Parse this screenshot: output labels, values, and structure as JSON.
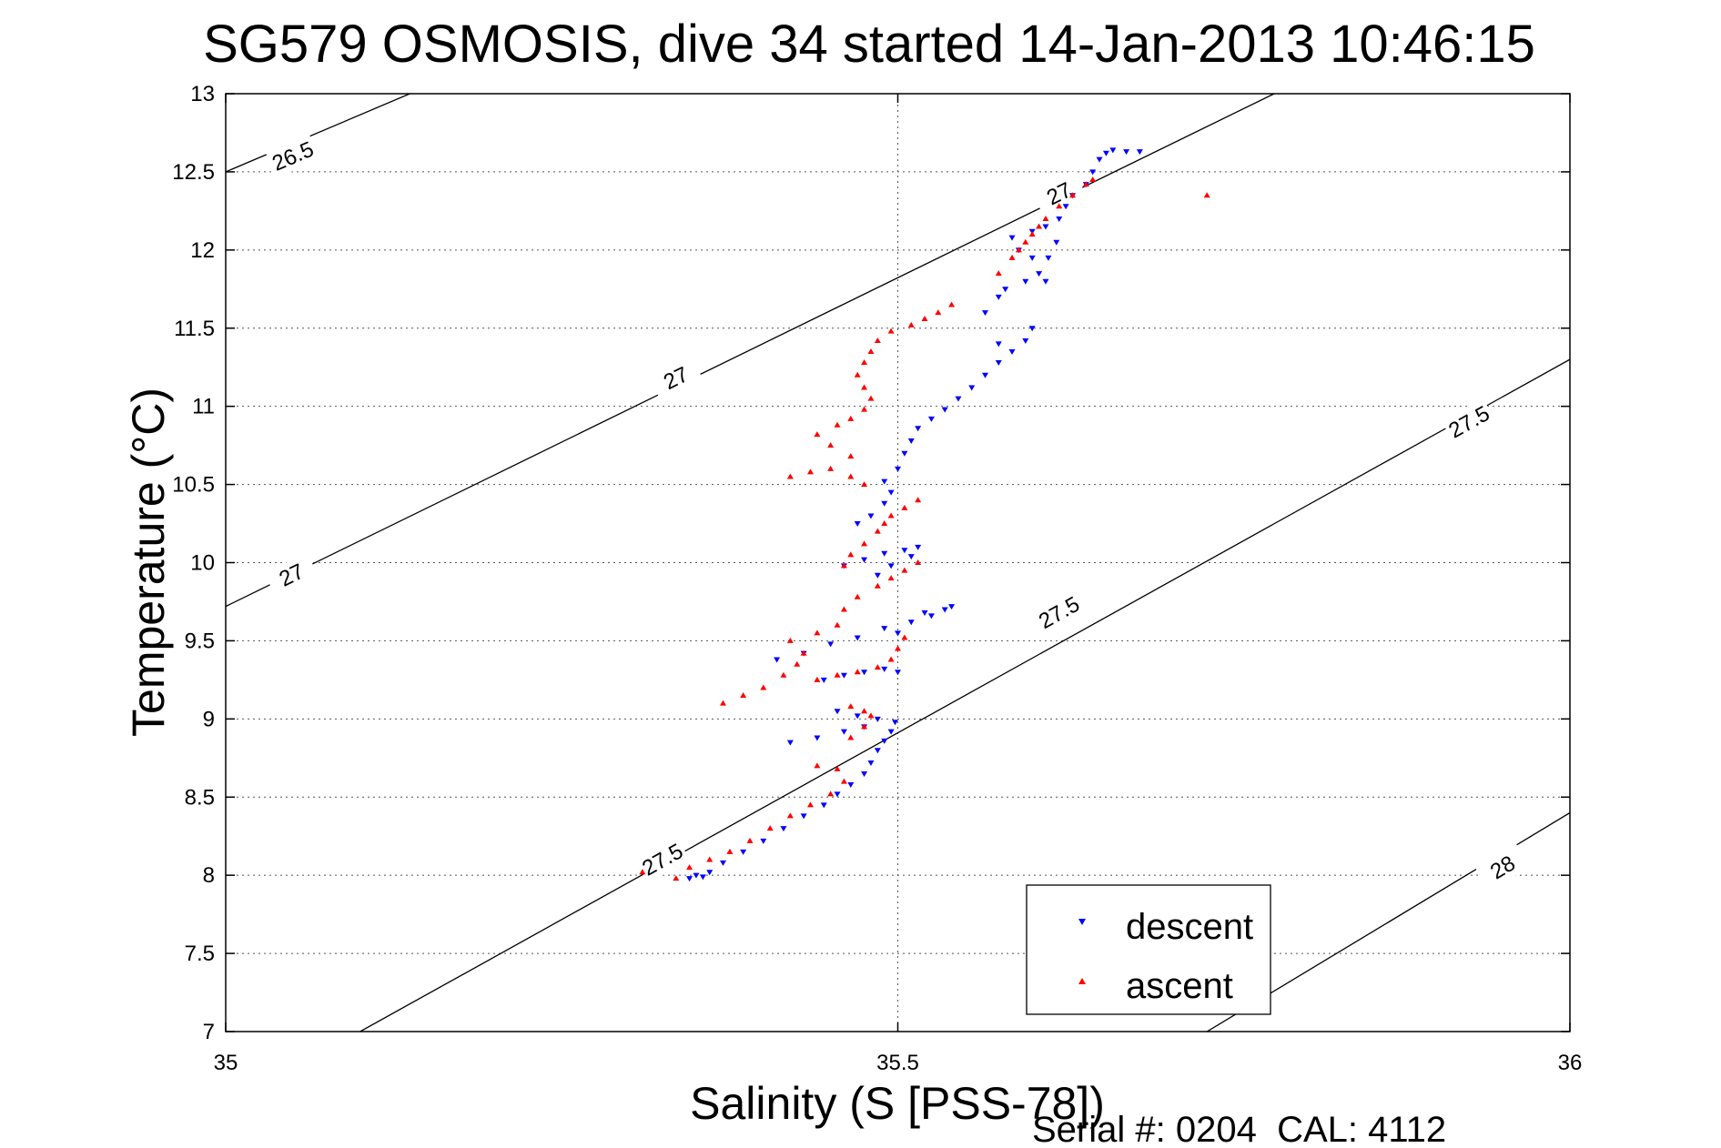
{
  "chart_data": {
    "type": "scatter",
    "title": "SG579 OSMOSIS, dive 34 started 14-Jan-2013 10:46:15",
    "xlabel": "Salinity (S [PSS-78])",
    "ylabel": "Temperature (°C)",
    "xlim": [
      35,
      36
    ],
    "ylim": [
      7,
      13
    ],
    "xticks": [
      "35",
      "35.5",
      "36"
    ],
    "yticks": [
      "7",
      "7.5",
      "8",
      "8.5",
      "9",
      "9.5",
      "10",
      "10.5",
      "11",
      "11.5",
      "12",
      "12.5",
      "13"
    ],
    "grid": true,
    "legend_position": "bottom-right",
    "footer": "Serial #: 0204  CAL: 4112",
    "density_contours": [
      {
        "value": "26.5",
        "points": [
          [
            35.0,
            12.5
          ],
          [
            35.137,
            13.0
          ]
        ],
        "label_at": [
          35.05,
          12.6
        ]
      },
      {
        "value": "27",
        "points": [
          [
            35.0,
            9.72
          ],
          [
            35.78,
            13.0
          ]
        ],
        "label_at": [
          35.049,
          9.92
        ]
      },
      {
        "value": "27",
        "points": [
          [
            35.0,
            9.72
          ],
          [
            35.78,
            13.0
          ]
        ],
        "label_at": [
          35.335,
          11.18
        ]
      },
      {
        "value": "27",
        "points": [
          [
            35.0,
            9.72
          ],
          [
            35.78,
            13.0
          ]
        ],
        "label_at": [
          35.62,
          12.36
        ]
      },
      {
        "value": "27.5",
        "points": [
          [
            35.1,
            7.0
          ],
          [
            36.0,
            11.3
          ]
        ],
        "label_at": [
          35.325,
          8.1
        ]
      },
      {
        "value": "27.5",
        "points": [
          [
            35.1,
            7.0
          ],
          [
            36.0,
            11.3
          ]
        ],
        "label_at": [
          35.62,
          9.68
        ]
      },
      {
        "value": "27.5",
        "points": [
          [
            35.1,
            7.0
          ],
          [
            36.0,
            11.3
          ]
        ],
        "label_at": [
          35.925,
          10.9
        ]
      },
      {
        "value": "28",
        "points": [
          [
            35.73,
            7.0
          ],
          [
            36.0,
            8.4
          ]
        ],
        "label_at": [
          35.95,
          8.05
        ]
      }
    ],
    "series": [
      {
        "name": "descent",
        "color": "#0000ff",
        "marker": "triangle-down",
        "points": [
          [
            35.345,
            7.98
          ],
          [
            35.35,
            8.0
          ],
          [
            35.355,
            7.99
          ],
          [
            35.36,
            8.02
          ],
          [
            35.37,
            8.08
          ],
          [
            35.385,
            8.15
          ],
          [
            35.4,
            8.22
          ],
          [
            35.415,
            8.3
          ],
          [
            35.43,
            8.38
          ],
          [
            35.445,
            8.45
          ],
          [
            35.455,
            8.52
          ],
          [
            35.465,
            8.58
          ],
          [
            35.475,
            8.65
          ],
          [
            35.48,
            8.72
          ],
          [
            35.485,
            8.8
          ],
          [
            35.49,
            8.86
          ],
          [
            35.495,
            8.92
          ],
          [
            35.498,
            8.98
          ],
          [
            35.42,
            8.85
          ],
          [
            35.44,
            8.88
          ],
          [
            35.46,
            8.92
          ],
          [
            35.475,
            8.95
          ],
          [
            35.485,
            9.0
          ],
          [
            35.47,
            9.02
          ],
          [
            35.455,
            9.05
          ],
          [
            35.445,
            9.25
          ],
          [
            35.46,
            9.28
          ],
          [
            35.475,
            9.3
          ],
          [
            35.49,
            9.32
          ],
          [
            35.5,
            9.3
          ],
          [
            35.41,
            9.38
          ],
          [
            35.43,
            9.42
          ],
          [
            35.45,
            9.48
          ],
          [
            35.47,
            9.52
          ],
          [
            35.49,
            9.58
          ],
          [
            35.51,
            9.62
          ],
          [
            35.525,
            9.66
          ],
          [
            35.535,
            9.7
          ],
          [
            35.54,
            9.72
          ],
          [
            35.52,
            9.68
          ],
          [
            35.5,
            9.55
          ],
          [
            35.46,
            9.98
          ],
          [
            35.475,
            10.02
          ],
          [
            35.49,
            10.06
          ],
          [
            35.505,
            10.08
          ],
          [
            35.515,
            10.1
          ],
          [
            35.51,
            10.04
          ],
          [
            35.495,
            9.98
          ],
          [
            35.485,
            9.92
          ],
          [
            35.47,
            10.25
          ],
          [
            35.48,
            10.3
          ],
          [
            35.49,
            10.38
          ],
          [
            35.495,
            10.45
          ],
          [
            35.49,
            10.52
          ],
          [
            35.5,
            10.6
          ],
          [
            35.505,
            10.7
          ],
          [
            35.51,
            10.78
          ],
          [
            35.515,
            10.86
          ],
          [
            35.525,
            10.92
          ],
          [
            35.535,
            10.98
          ],
          [
            35.545,
            11.05
          ],
          [
            35.555,
            11.12
          ],
          [
            35.565,
            11.2
          ],
          [
            35.575,
            11.28
          ],
          [
            35.585,
            11.35
          ],
          [
            35.595,
            11.42
          ],
          [
            35.6,
            11.5
          ],
          [
            35.575,
            11.4
          ],
          [
            35.565,
            11.6
          ],
          [
            35.575,
            11.7
          ],
          [
            35.58,
            11.75
          ],
          [
            35.595,
            11.8
          ],
          [
            35.605,
            11.85
          ],
          [
            35.61,
            11.8
          ],
          [
            35.6,
            11.95
          ],
          [
            35.59,
            12.0
          ],
          [
            35.585,
            12.08
          ],
          [
            35.6,
            12.12
          ],
          [
            35.61,
            12.15
          ],
          [
            35.62,
            12.2
          ],
          [
            35.625,
            12.28
          ],
          [
            35.63,
            12.35
          ],
          [
            35.64,
            12.42
          ],
          [
            35.645,
            12.5
          ],
          [
            35.65,
            12.58
          ],
          [
            35.655,
            12.62
          ],
          [
            35.66,
            12.64
          ],
          [
            35.67,
            12.63
          ],
          [
            35.68,
            12.63
          ],
          [
            35.618,
            12.05
          ],
          [
            35.612,
            11.95
          ]
        ]
      },
      {
        "name": "ascent",
        "color": "#ff0000",
        "marker": "triangle-up",
        "points": [
          [
            35.31,
            8.02
          ],
          [
            35.335,
            7.98
          ],
          [
            35.345,
            8.05
          ],
          [
            35.36,
            8.1
          ],
          [
            35.375,
            8.15
          ],
          [
            35.39,
            8.22
          ],
          [
            35.405,
            8.3
          ],
          [
            35.42,
            8.38
          ],
          [
            35.435,
            8.45
          ],
          [
            35.45,
            8.52
          ],
          [
            35.46,
            8.6
          ],
          [
            35.455,
            8.68
          ],
          [
            35.44,
            8.7
          ],
          [
            35.465,
            8.88
          ],
          [
            35.475,
            8.95
          ],
          [
            35.48,
            9.02
          ],
          [
            35.475,
            9.05
          ],
          [
            35.465,
            9.08
          ],
          [
            35.37,
            9.1
          ],
          [
            35.385,
            9.15
          ],
          [
            35.4,
            9.2
          ],
          [
            35.415,
            9.28
          ],
          [
            35.425,
            9.35
          ],
          [
            35.43,
            9.42
          ],
          [
            35.42,
            9.5
          ],
          [
            35.44,
            9.25
          ],
          [
            35.455,
            9.28
          ],
          [
            35.47,
            9.3
          ],
          [
            35.485,
            9.33
          ],
          [
            35.495,
            9.38
          ],
          [
            35.5,
            9.45
          ],
          [
            35.505,
            9.52
          ],
          [
            35.44,
            9.55
          ],
          [
            35.455,
            9.6
          ],
          [
            35.46,
            9.7
          ],
          [
            35.47,
            9.78
          ],
          [
            35.485,
            9.85
          ],
          [
            35.495,
            9.9
          ],
          [
            35.505,
            9.95
          ],
          [
            35.515,
            10.0
          ],
          [
            35.46,
            9.98
          ],
          [
            35.465,
            10.05
          ],
          [
            35.475,
            10.12
          ],
          [
            35.485,
            10.2
          ],
          [
            35.49,
            10.25
          ],
          [
            35.495,
            10.3
          ],
          [
            35.505,
            10.35
          ],
          [
            35.515,
            10.4
          ],
          [
            35.42,
            10.55
          ],
          [
            35.435,
            10.58
          ],
          [
            35.45,
            10.6
          ],
          [
            35.465,
            10.55
          ],
          [
            35.475,
            10.5
          ],
          [
            35.465,
            10.68
          ],
          [
            35.45,
            10.75
          ],
          [
            35.44,
            10.82
          ],
          [
            35.455,
            10.88
          ],
          [
            35.465,
            10.92
          ],
          [
            35.475,
            10.98
          ],
          [
            35.48,
            11.05
          ],
          [
            35.475,
            11.12
          ],
          [
            35.47,
            11.2
          ],
          [
            35.475,
            11.28
          ],
          [
            35.48,
            11.35
          ],
          [
            35.485,
            11.42
          ],
          [
            35.495,
            11.48
          ],
          [
            35.51,
            11.52
          ],
          [
            35.52,
            11.56
          ],
          [
            35.53,
            11.6
          ],
          [
            35.54,
            11.65
          ],
          [
            35.575,
            11.85
          ],
          [
            35.585,
            11.95
          ],
          [
            35.59,
            12.0
          ],
          [
            35.595,
            12.05
          ],
          [
            35.6,
            12.1
          ],
          [
            35.605,
            12.15
          ],
          [
            35.61,
            12.2
          ],
          [
            35.62,
            12.28
          ],
          [
            35.63,
            12.35
          ],
          [
            35.64,
            12.42
          ],
          [
            35.645,
            12.45
          ],
          [
            35.73,
            12.35
          ]
        ]
      }
    ]
  }
}
